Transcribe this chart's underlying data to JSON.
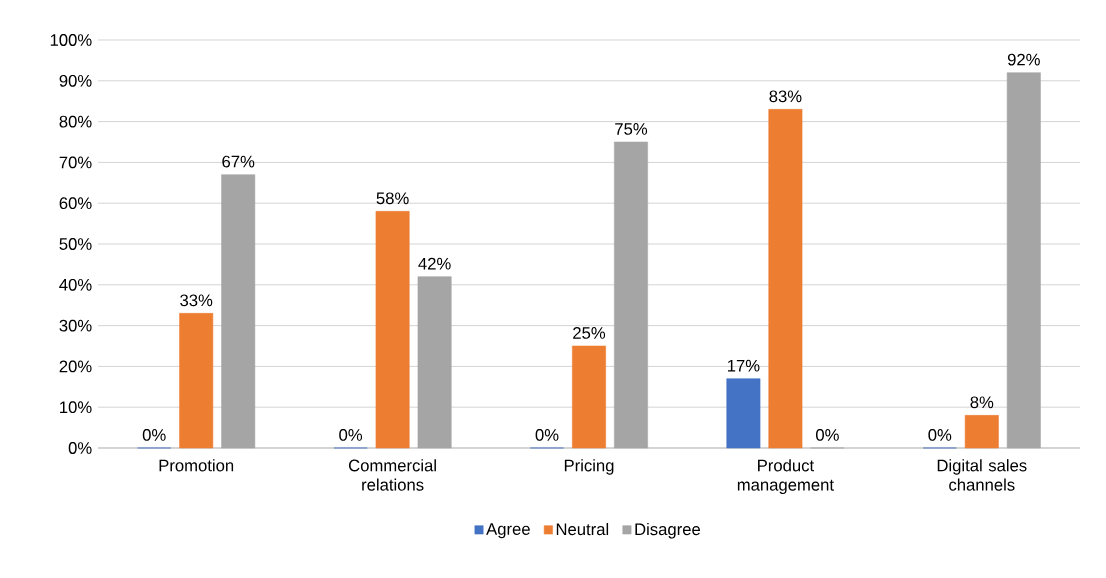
{
  "chart_data": {
    "type": "bar",
    "categories": [
      "Promotion",
      "Commercial relations",
      "Pricing",
      "Product management",
      "Digital sales channels"
    ],
    "series": [
      {
        "name": "Agree",
        "color": "#4472c4",
        "values": [
          0,
          0,
          0,
          17,
          0
        ],
        "value_labels": [
          "0%",
          "0%",
          "0%",
          "17%",
          "0%"
        ]
      },
      {
        "name": "Neutral",
        "color": "#ed7d31",
        "values": [
          33,
          58,
          25,
          83,
          8
        ],
        "value_labels": [
          "33%",
          "58%",
          "25%",
          "83%",
          "8%"
        ]
      },
      {
        "name": "Disagree",
        "color": "#a5a5a5",
        "values": [
          67,
          42,
          75,
          0,
          92
        ],
        "value_labels": [
          "67%",
          "42%",
          "75%",
          "0%",
          "92%"
        ]
      }
    ],
    "ylim": [
      0,
      100
    ],
    "yticks": [
      {
        "value": 0,
        "label": "0%"
      },
      {
        "value": 10,
        "label": "10%"
      },
      {
        "value": 20,
        "label": "20%"
      },
      {
        "value": 30,
        "label": "30%"
      },
      {
        "value": 40,
        "label": "40%"
      },
      {
        "value": 50,
        "label": "50%"
      },
      {
        "value": 60,
        "label": "60%"
      },
      {
        "value": 70,
        "label": "70%"
      },
      {
        "value": 80,
        "label": "80%"
      },
      {
        "value": 90,
        "label": "90%"
      },
      {
        "value": 100,
        "label": "100%"
      }
    ],
    "grid": "y",
    "legend": "bottom"
  }
}
